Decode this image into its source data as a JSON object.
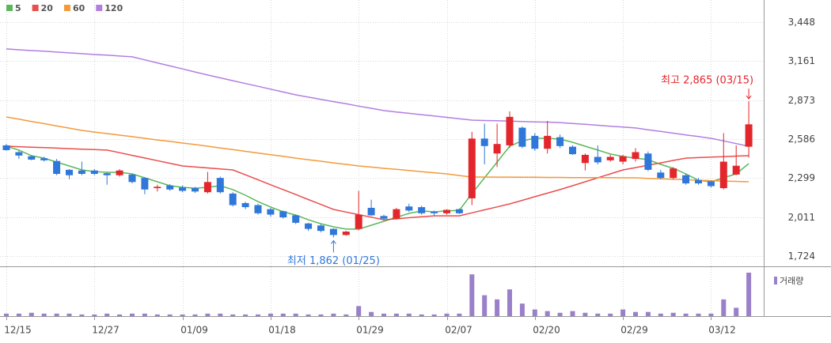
{
  "chart_data": {
    "type": "candlestick",
    "categories": [
      "12/15",
      null,
      null,
      null,
      null,
      null,
      null,
      "12/27",
      null,
      null,
      null,
      null,
      null,
      null,
      "01/09",
      null,
      null,
      null,
      null,
      null,
      null,
      "01/18",
      null,
      null,
      null,
      null,
      null,
      null,
      "01/29",
      null,
      null,
      null,
      null,
      null,
      null,
      "02/07",
      null,
      null,
      null,
      null,
      null,
      null,
      "02/20",
      null,
      null,
      null,
      null,
      null,
      null,
      "02/29",
      null,
      null,
      null,
      null,
      null,
      null,
      "03/12",
      null,
      null,
      null
    ],
    "candles": {
      "up_color": "#e3262c",
      "down_color": "#2f77d9",
      "open": [
        2540,
        2490,
        2460,
        2445,
        2425,
        2360,
        2355,
        2355,
        2335,
        2320,
        2325,
        2300,
        2225,
        2245,
        2230,
        2225,
        2195,
        2300,
        2185,
        2115,
        2100,
        2070,
        2055,
        2025,
        1965,
        1950,
        1925,
        1880,
        1925,
        2080,
        2020,
        2000,
        2090,
        2085,
        2050,
        2040,
        2070,
        2150,
        2590,
        2480,
        2540,
        2670,
        2610,
        2515,
        2600,
        2530,
        2410,
        2455,
        2430,
        2420,
        2440,
        2480,
        2340,
        2300,
        2320,
        2285,
        2275,
        2225,
        2325,
        2530
      ],
      "high": [
        2550,
        2500,
        2465,
        2455,
        2440,
        2365,
        2420,
        2365,
        2340,
        2365,
        2330,
        2305,
        2250,
        2255,
        2245,
        2235,
        2345,
        2310,
        2195,
        2125,
        2110,
        2080,
        2060,
        2030,
        1970,
        1960,
        1930,
        1910,
        2205,
        2140,
        2030,
        2080,
        2110,
        2095,
        2060,
        2070,
        2075,
        2640,
        2700,
        2700,
        2790,
        2680,
        2630,
        2720,
        2620,
        2540,
        2480,
        2540,
        2470,
        2470,
        2520,
        2495,
        2360,
        2380,
        2330,
        2300,
        2280,
        2630,
        2540,
        2865
      ],
      "low": [
        2500,
        2440,
        2430,
        2420,
        2320,
        2290,
        2320,
        2320,
        2250,
        2310,
        2260,
        2180,
        2200,
        2205,
        2195,
        2190,
        2185,
        2185,
        2090,
        2070,
        2030,
        2015,
        2000,
        1960,
        1910,
        1900,
        1862,
        1875,
        1915,
        2020,
        1990,
        1995,
        2050,
        2030,
        2020,
        2030,
        2035,
        2100,
        2400,
        2380,
        2520,
        2520,
        2500,
        2480,
        2520,
        2470,
        2355,
        2400,
        2420,
        2400,
        2420,
        2350,
        2290,
        2290,
        2250,
        2250,
        2230,
        2215,
        2320,
        2450
      ],
      "close": [
        2505,
        2465,
        2435,
        2430,
        2330,
        2320,
        2330,
        2330,
        2320,
        2355,
        2270,
        2215,
        2235,
        2215,
        2205,
        2200,
        2270,
        2195,
        2100,
        2085,
        2040,
        2030,
        2010,
        1970,
        1925,
        1910,
        1880,
        1905,
        2030,
        2025,
        2000,
        2070,
        2060,
        2040,
        2040,
        2065,
        2040,
        2590,
        2535,
        2550,
        2750,
        2530,
        2515,
        2610,
        2535,
        2475,
        2470,
        2415,
        2455,
        2460,
        2490,
        2360,
        2300,
        2370,
        2260,
        2260,
        2240,
        2420,
        2390,
        2695
      ]
    },
    "series": [
      {
        "name": "5",
        "color": "#5bb85a",
        "values": [
          2534,
          2505,
          2464,
          2446,
          2417,
          2388,
          2359,
          2347,
          2342,
          2342,
          2330,
          2301,
          2272,
          2243,
          2231,
          2225,
          2231,
          2243,
          2214,
          2173,
          2126,
          2086,
          2051,
          2027,
          1992,
          1963,
          1940,
          1923,
          1923,
          1952,
          1981,
          2010,
          2039,
          2057,
          2051,
          2057,
          2062,
          2185,
          2301,
          2417,
          2534,
          2574,
          2592,
          2592,
          2586,
          2563,
          2534,
          2505,
          2476,
          2458,
          2446,
          2435,
          2400,
          2371,
          2330,
          2283,
          2272,
          2301,
          2330,
          2406
        ]
      },
      {
        "name": "20",
        "color": "#ea4d4d",
        "values": [
          2534,
          2530,
          2527,
          2523,
          2520,
          2516,
          2512,
          2509,
          2505,
          2486,
          2466,
          2447,
          2427,
          2408,
          2388,
          2381,
          2374,
          2366,
          2359,
          2323,
          2287,
          2250,
          2214,
          2178,
          2141,
          2105,
          2068,
          2049,
          2030,
          2011,
          1992,
          1999,
          2007,
          2014,
          2021,
          2021,
          2021,
          2043,
          2065,
          2087,
          2109,
          2135,
          2162,
          2188,
          2214,
          2243,
          2272,
          2301,
          2330,
          2359,
          2376,
          2394,
          2411,
          2429,
          2446,
          2450,
          2454,
          2457,
          2461,
          2464
        ]
      },
      {
        "name": "60",
        "color": "#f39a3b",
        "values": [
          2749,
          2733,
          2716,
          2700,
          2683,
          2667,
          2650,
          2638,
          2627,
          2615,
          2604,
          2592,
          2580,
          2569,
          2557,
          2546,
          2534,
          2521,
          2509,
          2496,
          2484,
          2471,
          2459,
          2446,
          2434,
          2423,
          2411,
          2400,
          2388,
          2380,
          2371,
          2363,
          2355,
          2346,
          2338,
          2330,
          2318,
          2307,
          2307,
          2306,
          2306,
          2305,
          2305,
          2304,
          2304,
          2303,
          2303,
          2302,
          2302,
          2301,
          2301,
          2297,
          2294,
          2290,
          2287,
          2283,
          2280,
          2277,
          2275,
          2272
        ]
      },
      {
        "name": "120",
        "color": "#b27ee0",
        "values": [
          3250,
          3244,
          3238,
          3233,
          3227,
          3221,
          3215,
          3209,
          3204,
          3198,
          3192,
          3170,
          3147,
          3125,
          3103,
          3080,
          3058,
          3037,
          3016,
          2995,
          2975,
          2954,
          2933,
          2912,
          2895,
          2879,
          2862,
          2846,
          2829,
          2813,
          2796,
          2786,
          2776,
          2766,
          2756,
          2746,
          2736,
          2726,
          2723,
          2721,
          2718,
          2716,
          2713,
          2711,
          2708,
          2701,
          2695,
          2688,
          2681,
          2675,
          2668,
          2655,
          2643,
          2630,
          2617,
          2605,
          2592,
          2573,
          2553,
          2534
        ]
      }
    ],
    "volume": {
      "name": "거래량",
      "color": "#9a7fc9",
      "values": [
        3,
        3,
        4,
        3,
        3,
        3,
        2,
        2,
        3,
        2,
        3,
        3,
        2,
        2,
        2,
        2,
        3,
        3,
        2,
        2,
        2,
        3,
        3,
        3,
        2,
        2,
        3,
        2,
        12,
        5,
        3,
        3,
        3,
        2,
        2,
        3,
        3,
        50,
        25,
        20,
        32,
        15,
        8,
        6,
        4,
        6,
        4,
        3,
        3,
        8,
        5,
        5,
        3,
        4,
        3,
        3,
        3,
        20,
        10,
        52
      ]
    },
    "ylim": [
      1655,
      3494
    ],
    "yticks": [
      {
        "value": 1724,
        "label": "1,724"
      },
      {
        "value": 2011,
        "label": "2,011"
      },
      {
        "value": 2299,
        "label": "2,299"
      },
      {
        "value": 2586,
        "label": "2,586"
      },
      {
        "value": 2873,
        "label": "2,873"
      },
      {
        "value": 3161,
        "label": "3,161"
      },
      {
        "value": 3448,
        "label": "3,448"
      }
    ],
    "grid": true,
    "annotations": {
      "high": "최고 2,865 (03/15)",
      "low": "최저 1,862 (01/25)"
    }
  }
}
